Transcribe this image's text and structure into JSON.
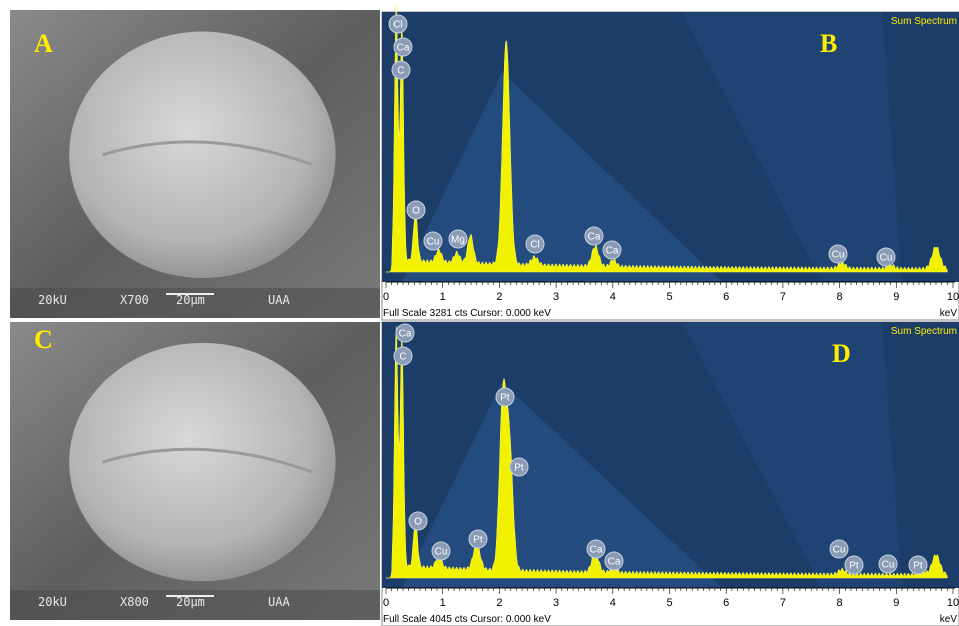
{
  "panels": [
    {
      "label": "A",
      "sem": {
        "voltage": "20kU",
        "magnification": "X700",
        "scale": "20µm",
        "lab": "UAA"
      }
    },
    {
      "label": "B",
      "spectrum": {
        "title": "Sum Spectrum",
        "footer": "Full Scale 3281 cts  Cursor: 0.000 keV",
        "unit": "keV",
        "ticks": [
          0,
          1,
          2,
          3,
          4,
          5,
          6,
          7,
          8,
          9,
          10
        ],
        "peaks": [
          "Cl",
          "Ca",
          "C",
          "O",
          "Cu",
          "Mg",
          "Cl",
          "Ca",
          "Ca",
          "Cu",
          "Cu"
        ]
      }
    },
    {
      "label": "C",
      "sem": {
        "voltage": "20kU",
        "magnification": "X800",
        "scale": "20µm",
        "lab": "UAA"
      }
    },
    {
      "label": "D",
      "spectrum": {
        "title": "Sum Spectrum",
        "footer": "Full Scale 4045 cts  Cursor: 0.000 keV",
        "unit": "keV",
        "ticks": [
          0,
          1,
          2,
          3,
          4,
          5,
          6,
          7,
          8,
          9,
          10
        ],
        "peaks": [
          "Ca",
          "C",
          "Pt",
          "Pt",
          "O",
          "Cu",
          "Pt",
          "Ca",
          "Ca",
          "Cu",
          "Pt",
          "Cu",
          "Pt"
        ]
      }
    }
  ]
}
